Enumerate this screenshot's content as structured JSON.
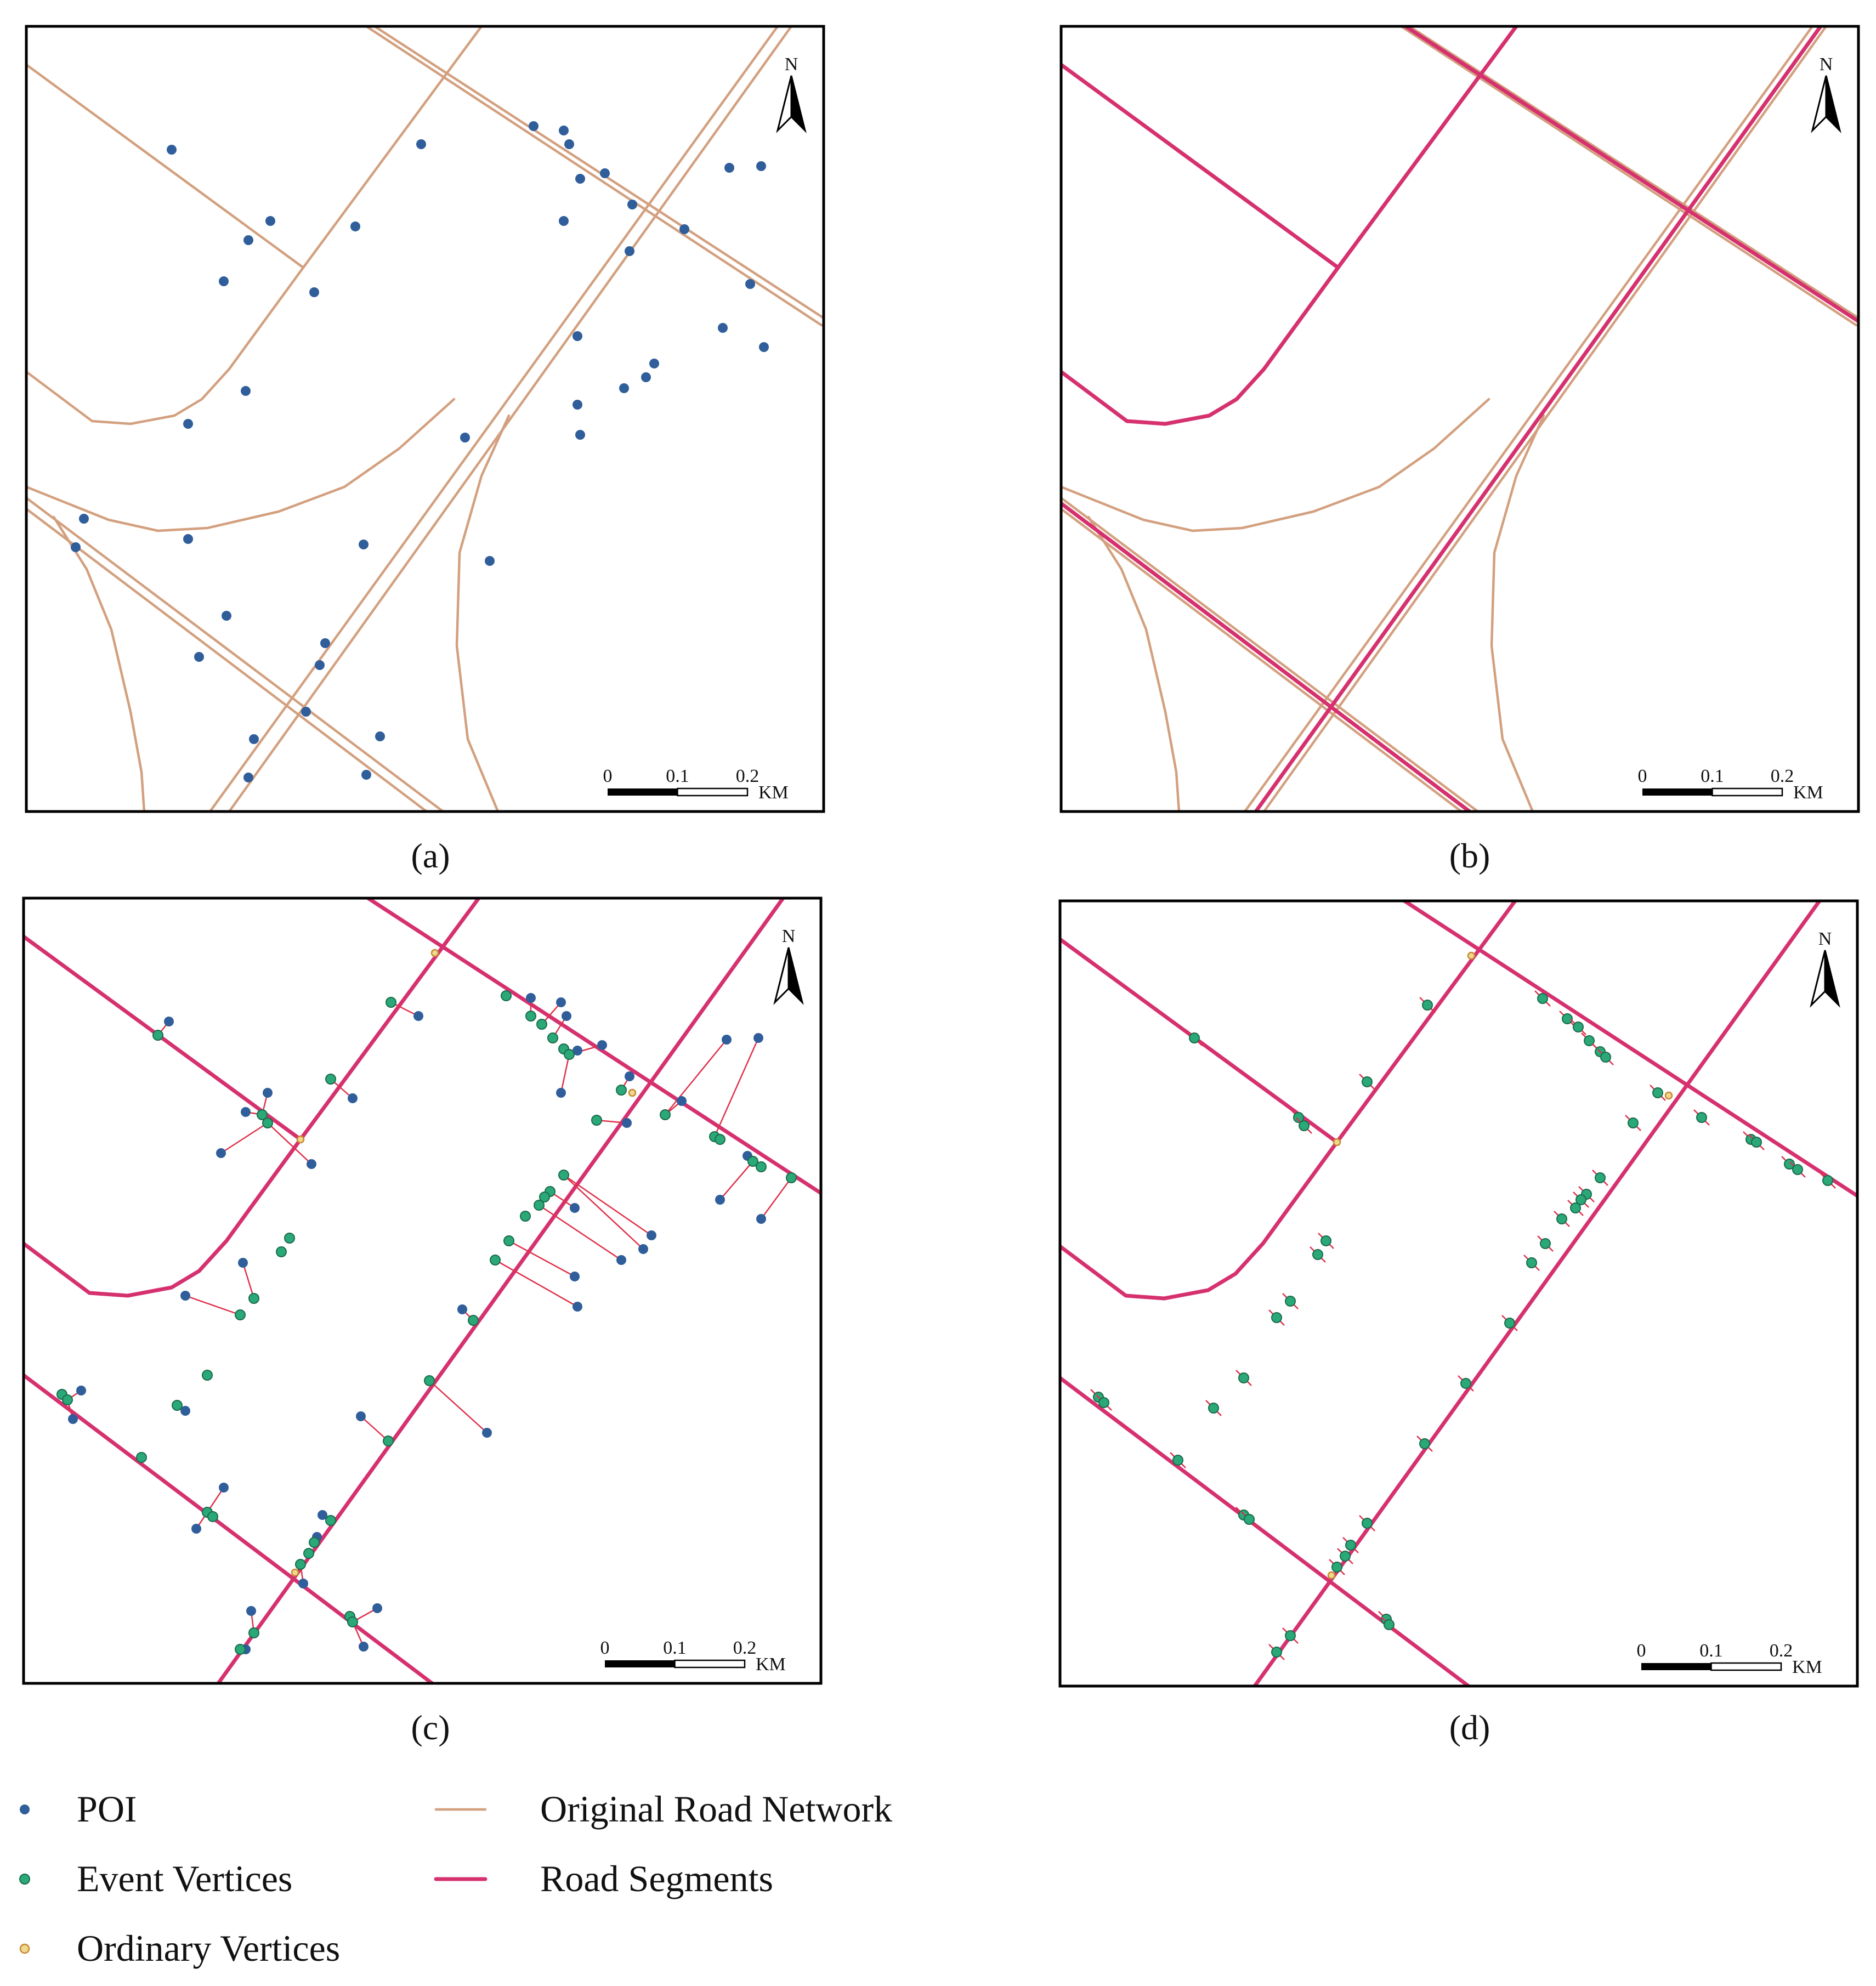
{
  "panels": [
    {
      "id": "a",
      "caption": "(a)"
    },
    {
      "id": "b",
      "caption": "(b)"
    },
    {
      "id": "c",
      "caption": "(c)"
    },
    {
      "id": "d",
      "caption": "(d)"
    }
  ],
  "scale_bar": {
    "labels": [
      "0",
      "0.1",
      "0.2"
    ],
    "unit": "KM"
  },
  "north_arrow": {
    "label": "N"
  },
  "legend": [
    {
      "label": "POI",
      "symbol": "poi-dot",
      "color": "#2f5e9a"
    },
    {
      "label": "Event Vertices",
      "symbol": "event-dot",
      "color": "#2aa878"
    },
    {
      "label": "Ordinary Vertices",
      "symbol": "ordinary-dot",
      "color": "#f0d890"
    },
    {
      "label": "Original Road Network",
      "symbol": "thin-line",
      "color": "#d3a07f"
    },
    {
      "label": "Road Segments",
      "symbol": "thick-line",
      "color": "#d6316f"
    }
  ]
}
